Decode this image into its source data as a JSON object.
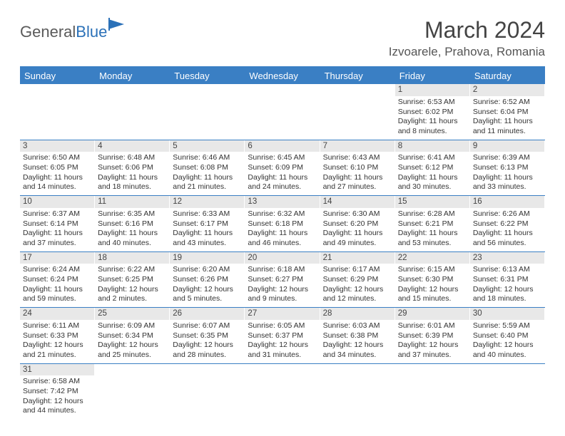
{
  "logo": {
    "text_gray": "General",
    "text_blue": "Blue"
  },
  "title": "March 2024",
  "location": "Izvoarele, Prahova, Romania",
  "colors": {
    "header_bg": "#3a7fc4",
    "header_text": "#ffffff",
    "daynum_bg": "#e8e8e8",
    "border": "#3a7fc4",
    "text": "#333333"
  },
  "weekdays": [
    "Sunday",
    "Monday",
    "Tuesday",
    "Wednesday",
    "Thursday",
    "Friday",
    "Saturday"
  ],
  "weeks": [
    [
      null,
      null,
      null,
      null,
      null,
      {
        "day": "1",
        "sunrise": "Sunrise: 6:53 AM",
        "sunset": "Sunset: 6:02 PM",
        "daylight": "Daylight: 11 hours and 8 minutes."
      },
      {
        "day": "2",
        "sunrise": "Sunrise: 6:52 AM",
        "sunset": "Sunset: 6:04 PM",
        "daylight": "Daylight: 11 hours and 11 minutes."
      }
    ],
    [
      {
        "day": "3",
        "sunrise": "Sunrise: 6:50 AM",
        "sunset": "Sunset: 6:05 PM",
        "daylight": "Daylight: 11 hours and 14 minutes."
      },
      {
        "day": "4",
        "sunrise": "Sunrise: 6:48 AM",
        "sunset": "Sunset: 6:06 PM",
        "daylight": "Daylight: 11 hours and 18 minutes."
      },
      {
        "day": "5",
        "sunrise": "Sunrise: 6:46 AM",
        "sunset": "Sunset: 6:08 PM",
        "daylight": "Daylight: 11 hours and 21 minutes."
      },
      {
        "day": "6",
        "sunrise": "Sunrise: 6:45 AM",
        "sunset": "Sunset: 6:09 PM",
        "daylight": "Daylight: 11 hours and 24 minutes."
      },
      {
        "day": "7",
        "sunrise": "Sunrise: 6:43 AM",
        "sunset": "Sunset: 6:10 PM",
        "daylight": "Daylight: 11 hours and 27 minutes."
      },
      {
        "day": "8",
        "sunrise": "Sunrise: 6:41 AM",
        "sunset": "Sunset: 6:12 PM",
        "daylight": "Daylight: 11 hours and 30 minutes."
      },
      {
        "day": "9",
        "sunrise": "Sunrise: 6:39 AM",
        "sunset": "Sunset: 6:13 PM",
        "daylight": "Daylight: 11 hours and 33 minutes."
      }
    ],
    [
      {
        "day": "10",
        "sunrise": "Sunrise: 6:37 AM",
        "sunset": "Sunset: 6:14 PM",
        "daylight": "Daylight: 11 hours and 37 minutes."
      },
      {
        "day": "11",
        "sunrise": "Sunrise: 6:35 AM",
        "sunset": "Sunset: 6:16 PM",
        "daylight": "Daylight: 11 hours and 40 minutes."
      },
      {
        "day": "12",
        "sunrise": "Sunrise: 6:33 AM",
        "sunset": "Sunset: 6:17 PM",
        "daylight": "Daylight: 11 hours and 43 minutes."
      },
      {
        "day": "13",
        "sunrise": "Sunrise: 6:32 AM",
        "sunset": "Sunset: 6:18 PM",
        "daylight": "Daylight: 11 hours and 46 minutes."
      },
      {
        "day": "14",
        "sunrise": "Sunrise: 6:30 AM",
        "sunset": "Sunset: 6:20 PM",
        "daylight": "Daylight: 11 hours and 49 minutes."
      },
      {
        "day": "15",
        "sunrise": "Sunrise: 6:28 AM",
        "sunset": "Sunset: 6:21 PM",
        "daylight": "Daylight: 11 hours and 53 minutes."
      },
      {
        "day": "16",
        "sunrise": "Sunrise: 6:26 AM",
        "sunset": "Sunset: 6:22 PM",
        "daylight": "Daylight: 11 hours and 56 minutes."
      }
    ],
    [
      {
        "day": "17",
        "sunrise": "Sunrise: 6:24 AM",
        "sunset": "Sunset: 6:24 PM",
        "daylight": "Daylight: 11 hours and 59 minutes."
      },
      {
        "day": "18",
        "sunrise": "Sunrise: 6:22 AM",
        "sunset": "Sunset: 6:25 PM",
        "daylight": "Daylight: 12 hours and 2 minutes."
      },
      {
        "day": "19",
        "sunrise": "Sunrise: 6:20 AM",
        "sunset": "Sunset: 6:26 PM",
        "daylight": "Daylight: 12 hours and 5 minutes."
      },
      {
        "day": "20",
        "sunrise": "Sunrise: 6:18 AM",
        "sunset": "Sunset: 6:27 PM",
        "daylight": "Daylight: 12 hours and 9 minutes."
      },
      {
        "day": "21",
        "sunrise": "Sunrise: 6:17 AM",
        "sunset": "Sunset: 6:29 PM",
        "daylight": "Daylight: 12 hours and 12 minutes."
      },
      {
        "day": "22",
        "sunrise": "Sunrise: 6:15 AM",
        "sunset": "Sunset: 6:30 PM",
        "daylight": "Daylight: 12 hours and 15 minutes."
      },
      {
        "day": "23",
        "sunrise": "Sunrise: 6:13 AM",
        "sunset": "Sunset: 6:31 PM",
        "daylight": "Daylight: 12 hours and 18 minutes."
      }
    ],
    [
      {
        "day": "24",
        "sunrise": "Sunrise: 6:11 AM",
        "sunset": "Sunset: 6:33 PM",
        "daylight": "Daylight: 12 hours and 21 minutes."
      },
      {
        "day": "25",
        "sunrise": "Sunrise: 6:09 AM",
        "sunset": "Sunset: 6:34 PM",
        "daylight": "Daylight: 12 hours and 25 minutes."
      },
      {
        "day": "26",
        "sunrise": "Sunrise: 6:07 AM",
        "sunset": "Sunset: 6:35 PM",
        "daylight": "Daylight: 12 hours and 28 minutes."
      },
      {
        "day": "27",
        "sunrise": "Sunrise: 6:05 AM",
        "sunset": "Sunset: 6:37 PM",
        "daylight": "Daylight: 12 hours and 31 minutes."
      },
      {
        "day": "28",
        "sunrise": "Sunrise: 6:03 AM",
        "sunset": "Sunset: 6:38 PM",
        "daylight": "Daylight: 12 hours and 34 minutes."
      },
      {
        "day": "29",
        "sunrise": "Sunrise: 6:01 AM",
        "sunset": "Sunset: 6:39 PM",
        "daylight": "Daylight: 12 hours and 37 minutes."
      },
      {
        "day": "30",
        "sunrise": "Sunrise: 5:59 AM",
        "sunset": "Sunset: 6:40 PM",
        "daylight": "Daylight: 12 hours and 40 minutes."
      }
    ],
    [
      {
        "day": "31",
        "sunrise": "Sunrise: 6:58 AM",
        "sunset": "Sunset: 7:42 PM",
        "daylight": "Daylight: 12 hours and 44 minutes."
      },
      null,
      null,
      null,
      null,
      null,
      null
    ]
  ]
}
